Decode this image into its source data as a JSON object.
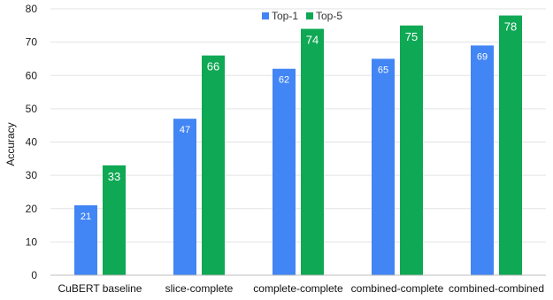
{
  "chart_data": {
    "type": "bar",
    "categories": [
      "CuBERT baseline",
      "slice-complete",
      "complete-complete",
      "combined-complete",
      "combined-combined"
    ],
    "series": [
      {
        "name": "Top-1",
        "values": [
          21,
          47,
          62,
          65,
          69
        ],
        "color": "#4285f4"
      },
      {
        "name": "Top-5",
        "values": [
          33,
          66,
          74,
          75,
          78
        ],
        "color": "#0fa854"
      }
    ],
    "data_labels": [
      [
        "21",
        "47",
        "62",
        "65",
        "69"
      ],
      [
        "33",
        "66",
        "74",
        "75",
        "78"
      ]
    ],
    "title": "",
    "xlabel": "",
    "ylabel": "Accuracy",
    "ylim": [
      0,
      80
    ],
    "yticks": [
      0,
      10,
      20,
      30,
      40,
      50,
      60,
      70,
      80
    ],
    "grid": true,
    "legend_position": "top-center"
  }
}
